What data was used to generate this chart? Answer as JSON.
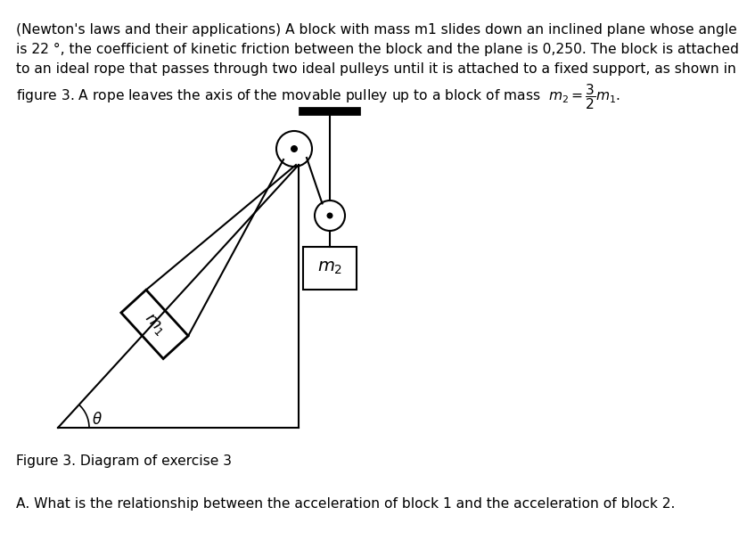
{
  "figure_caption": "Figure 3. Diagram of exercise 3",
  "question_text": "A. What is the relationship between the acceleration of block 1 and the acceleration of block 2.",
  "background_color": "#ffffff",
  "line_color": "#000000",
  "header_lines": [
    "(Newton's laws and their applications) A block with mass m1 slides down an inclined plane whose angle",
    "is 22 °, the coefficient of kinetic friction between the block and the plane is 0,250. The block is attached",
    "to an ideal rope that passes through two ideal pulleys until it is attached to a fixed support, as shown in"
  ],
  "header_line4": "figure 3. A rope leaves the axis of the movable pulley up to a block of mass  $m_2 = \\dfrac{3}{2}m_1$.",
  "font_size": 11.2
}
